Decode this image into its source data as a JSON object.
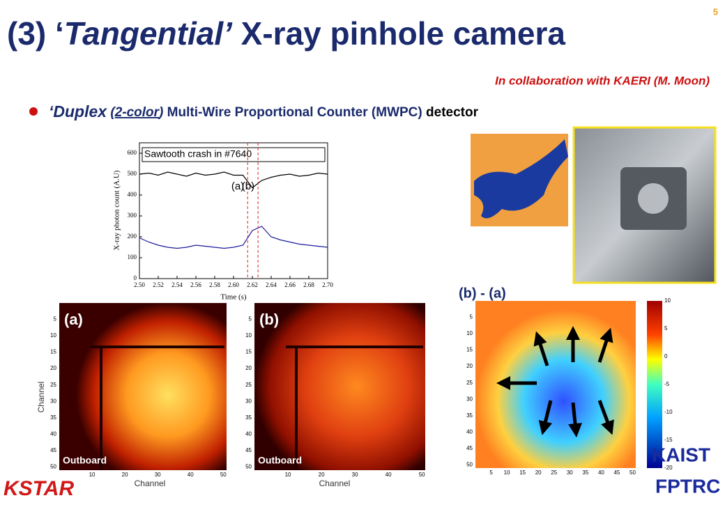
{
  "page_number": "5",
  "title": {
    "prefix": "(3) ‘",
    "italic": "Tangential’",
    "rest": " X-ray pinhole camera"
  },
  "collaboration": "In collaboration with KAERI (M. Moon)",
  "bullet": {
    "lead": "‘Duplex",
    "open": "(",
    "color": "2-color",
    "close": ")",
    "middle": "Multi-Wire Proportional Counter (MWPC)",
    "last": "detector"
  },
  "chart_data": {
    "type": "line",
    "annotation": "Sawtooth crash in #7640",
    "markers": [
      "(a)",
      "(b)"
    ],
    "marker_x": [
      2.615,
      2.626
    ],
    "xlabel": "Time (s)",
    "ylabel": "X-ray photon count (A.U)",
    "x": [
      2.5,
      2.51,
      2.52,
      2.53,
      2.54,
      2.55,
      2.56,
      2.57,
      2.58,
      2.59,
      2.6,
      2.61,
      2.62,
      2.63,
      2.64,
      2.65,
      2.66,
      2.67,
      2.68,
      2.69,
      2.7
    ],
    "series": [
      {
        "color": "#000000",
        "values": [
          500,
          505,
          495,
          510,
          500,
          490,
          505,
          495,
          500,
          510,
          495,
          495,
          435,
          470,
          485,
          495,
          500,
          490,
          495,
          505,
          500
        ]
      },
      {
        "color": "#1a1a9c",
        "values": [
          195,
          175,
          160,
          150,
          145,
          150,
          160,
          155,
          150,
          145,
          150,
          160,
          230,
          250,
          200,
          185,
          175,
          165,
          160,
          155,
          150
        ]
      }
    ],
    "xlim": [
      2.5,
      2.7
    ],
    "ylim": [
      0,
      650
    ],
    "xticks": [
      {
        "value": 2.5,
        "label": "2.50"
      },
      {
        "value": 2.52,
        "label": "2.52"
      },
      {
        "value": 2.54,
        "label": "2.54"
      },
      {
        "value": 2.56,
        "label": "2.56"
      },
      {
        "value": 2.58,
        "label": "2.58"
      },
      {
        "value": 2.6,
        "label": "2.60"
      },
      {
        "value": 2.62,
        "label": "2.62"
      },
      {
        "value": 2.64,
        "label": "2.64"
      },
      {
        "value": 2.66,
        "label": "2.66"
      },
      {
        "value": 2.68,
        "label": "2.68"
      },
      {
        "value": 2.7,
        "label": "2.70"
      }
    ],
    "yticks": [
      0,
      100,
      200,
      300,
      400,
      500,
      600
    ]
  },
  "heatmaps": [
    {
      "label": "(a)",
      "caption": "Outboard"
    },
    {
      "label": "(b)",
      "caption": "Outboard"
    }
  ],
  "heatmap_axes": {
    "ylabel": "Channel",
    "xlabel": "Channel",
    "yticks": [
      5,
      10,
      15,
      20,
      25,
      30,
      35,
      40,
      45,
      50
    ],
    "xticks": [
      10,
      20,
      30,
      40,
      50
    ]
  },
  "difference": {
    "label": "(b) - (a)",
    "yticks": [
      5,
      10,
      15,
      20,
      25,
      30,
      35,
      40,
      45,
      50
    ],
    "xticks": [
      5,
      10,
      15,
      20,
      25,
      30,
      35,
      40,
      45,
      50
    ],
    "colorbar_ticks": [
      10,
      5,
      0,
      -5,
      -10,
      -15,
      -20
    ]
  },
  "logos": {
    "kstar": "KSTAR",
    "kaist": "KAIST",
    "fptrc": "FPTRC"
  }
}
